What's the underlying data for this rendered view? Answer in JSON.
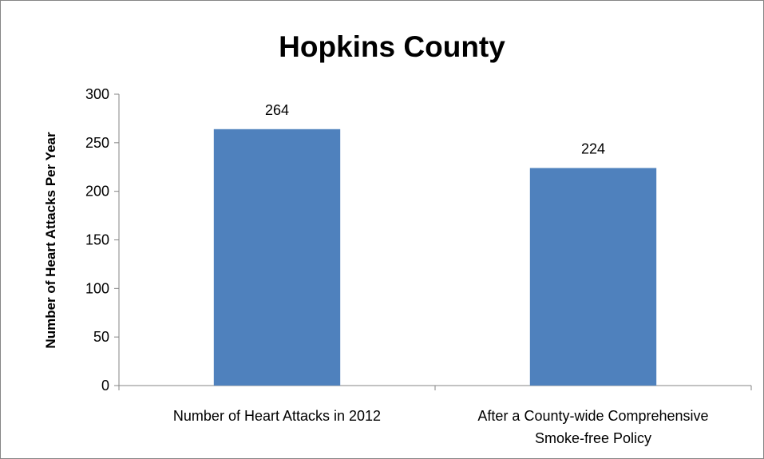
{
  "chart_data": {
    "type": "bar",
    "title": "Hopkins County",
    "xlabel": "",
    "ylabel": "Number of Heart Attacks Per Year",
    "categories": [
      [
        "Number of Heart Attacks in 2012"
      ],
      [
        "After a County-wide Comprehensive",
        "Smoke-free Policy"
      ]
    ],
    "values": [
      264,
      224
    ],
    "data_labels": [
      "264",
      "224"
    ],
    "ylim": [
      0,
      300
    ],
    "yticks": [
      0,
      50,
      100,
      150,
      200,
      250,
      300
    ],
    "bar_color": "#4f81bd",
    "grid": false,
    "legend": "none"
  }
}
